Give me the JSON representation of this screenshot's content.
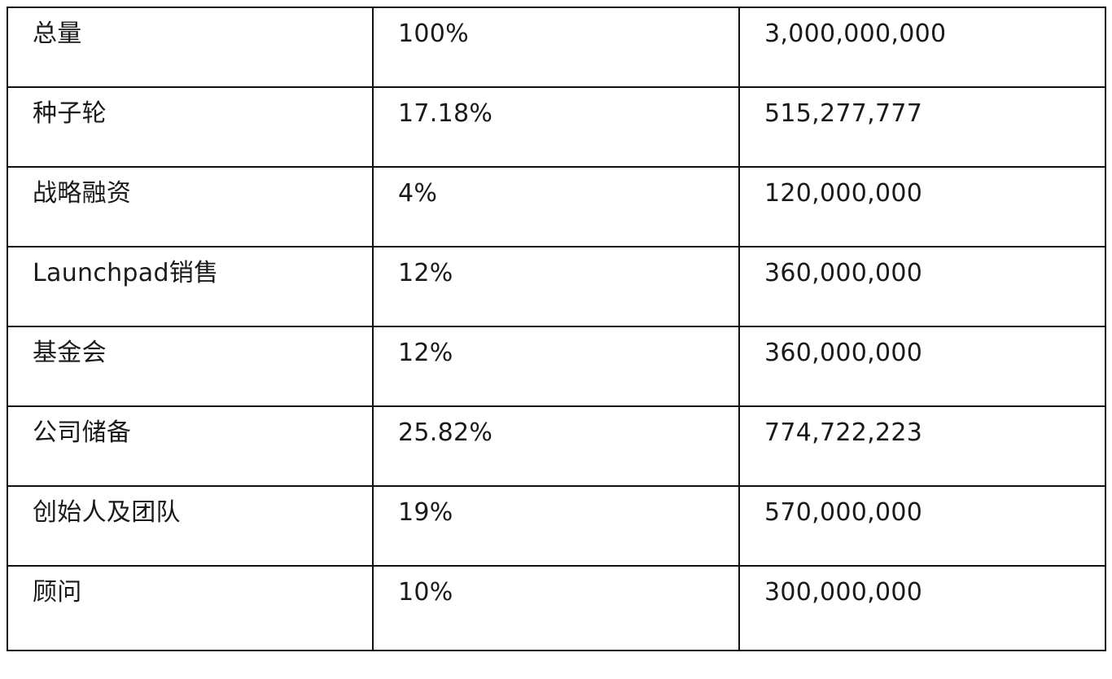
{
  "table": {
    "rows": [
      {
        "category": "总量",
        "percent": "100%",
        "amount": "3,000,000,000"
      },
      {
        "category": "种子轮",
        "percent": "17.18%",
        "amount": "515,277,777"
      },
      {
        "category": "战略融资",
        "percent": "4%",
        "amount": "120,000,000"
      },
      {
        "category": "Launchpad销售",
        "percent": "12%",
        "amount": "360,000,000"
      },
      {
        "category": "基金会",
        "percent": "12%",
        "amount": "360,000,000"
      },
      {
        "category": "公司储备",
        "percent": "25.82%",
        "amount": "774,722,223"
      },
      {
        "category": "创始人及团队",
        "percent": "19%",
        "amount": "570,000,000"
      },
      {
        "category": "顾问",
        "percent": "10%",
        "amount": "300,000,000"
      }
    ]
  }
}
